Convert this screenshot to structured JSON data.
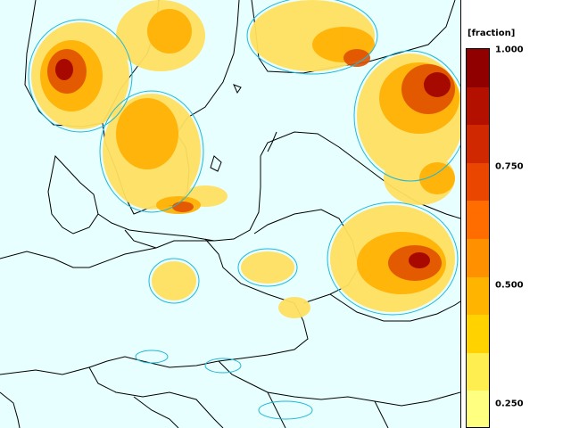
{
  "legend": {
    "unit": "[fraction]",
    "ticks": [
      "1.000",
      "0.750",
      "0.500",
      "0.250"
    ],
    "tick_values": [
      1.0,
      0.75,
      0.5,
      0.25
    ],
    "range": [
      0.2,
      1.0
    ],
    "colors": [
      "#ffff80",
      "#ffee50",
      "#ffd200",
      "#ffb400",
      "#ff9000",
      "#ff6c00",
      "#ea4600",
      "#d02800",
      "#b31000",
      "#900000"
    ]
  },
  "map": {
    "water_color": "#e8ffff",
    "border_color": "#000000",
    "contour_color": "#20b8d8"
  }
}
